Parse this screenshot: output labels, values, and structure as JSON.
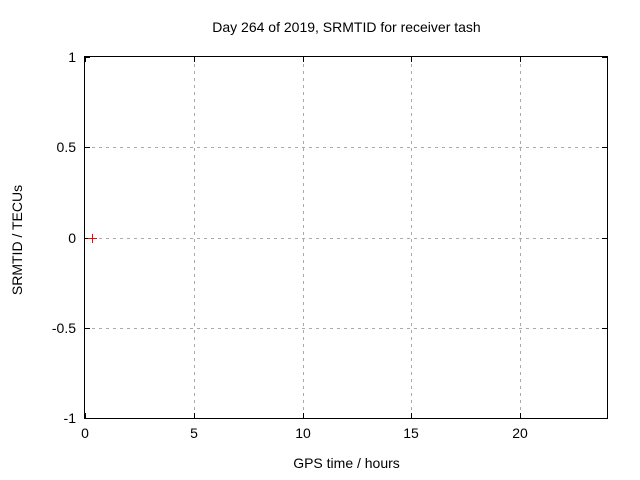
{
  "window": {
    "background": "#ffffff"
  },
  "chart_data": {
    "type": "scatter",
    "title": "Day 264 of 2019, SRMTID for receiver tash",
    "xlabel": "GPS time / hours",
    "ylabel": "SRMTID / TECUs",
    "xlim": [
      0,
      24
    ],
    "ylim": [
      -1,
      1
    ],
    "xticks": [
      0,
      5,
      10,
      15,
      20
    ],
    "xtick_labels": [
      "0",
      "5",
      "10",
      "15",
      "20"
    ],
    "yticks": [
      1,
      0.5,
      0,
      -0.5,
      -1
    ],
    "ytick_labels": [
      "1",
      "0.5",
      "0",
      "-0.5",
      "-1"
    ],
    "grid": true,
    "grid_style": "dashed",
    "legend_position": "none",
    "axis_color": "#000000",
    "grid_color": "#aaaaaa",
    "background_color": "#ffffff",
    "series": [
      {
        "name": "SRMTID",
        "marker": "plus",
        "color": "#ff0000",
        "points": [
          [
            0.3,
            0.0
          ]
        ]
      }
    ]
  }
}
